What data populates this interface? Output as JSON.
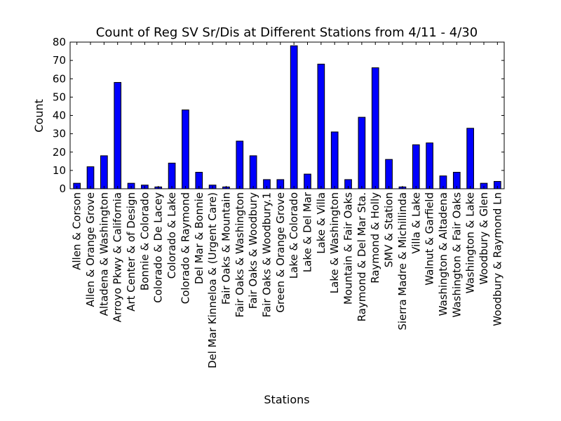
{
  "chart_data": {
    "type": "bar",
    "title": "Count of Reg SV Sr/Dis at Different Stations from 4/11 - 4/30",
    "xlabel": "Stations",
    "ylabel": "Count",
    "ylim": [
      0,
      80
    ],
    "yticks": [
      "0",
      "10",
      "20",
      "30",
      "40",
      "50",
      "60",
      "70",
      "80"
    ],
    "grid": false,
    "legend": "none",
    "bar_color": "#0000ff",
    "categories": [
      "Allen & Corson",
      "Allen & Orange Grove",
      "Altadena & Washington",
      "Arroyo Pkwy & California",
      "Art Center & of Design",
      "Bonnie & Colorado",
      "Colorado & De Lacey",
      "Colorado & Lake",
      "Colorado & Raymond",
      "Del Mar & Bonnie",
      "Del Mar Kinneloa & (Urgent Care)",
      "Fair Oaks & Mountain",
      "Fair Oaks & Washington",
      "Fair Oaks & Woodbury",
      "Fair Oaks & Woodbury.1",
      "Green & Orange Grove",
      "Lake & Colorado",
      "Lake & Del Mar",
      "Lake & Villa",
      "Lake & Washington",
      "Mountain & Fair Oaks",
      "Raymond & Del Mar Sta.",
      "Raymond & Holly",
      "SMV & Station",
      "Sierra Madre & Michillinda",
      "Villa & Lake",
      "Walnut & Garfield",
      "Washington & Altadena",
      "Washington & Fair Oaks",
      "Washington & Lake",
      "Woodbury & Glen",
      "Woodbury & Raymond Ln"
    ],
    "values": [
      3,
      12,
      18,
      58,
      3,
      2,
      1,
      14,
      43,
      9,
      2,
      1,
      26,
      18,
      5,
      5,
      78,
      8,
      68,
      31,
      5,
      39,
      66,
      16,
      1,
      24,
      25,
      7,
      9,
      33,
      3,
      4
    ]
  }
}
